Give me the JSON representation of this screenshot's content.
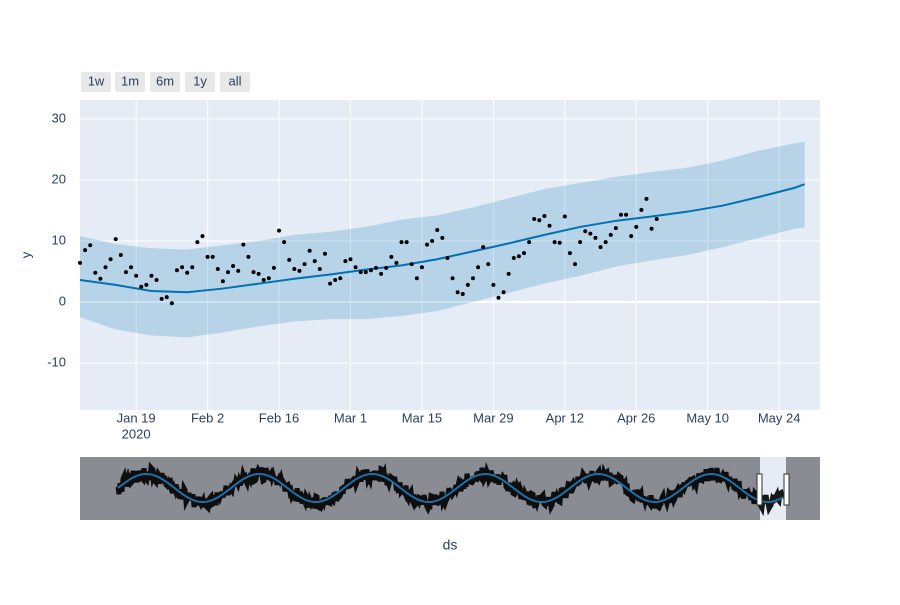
{
  "chart_data": {
    "type": "line",
    "range_buttons": [
      "1w",
      "1m",
      "6m",
      "1y",
      "all"
    ],
    "y_label": "y",
    "x_label": "ds",
    "xlim": [
      "2020-01-08",
      "2020-06-01"
    ],
    "ylim": [
      -17.7,
      33.1
    ],
    "yticks": [
      -10,
      0,
      10,
      20,
      30
    ],
    "xticks": [
      {
        "value": "2020-01-19",
        "label": "Jan 19",
        "sublabel": "2020"
      },
      {
        "value": "2020-02-02",
        "label": "Feb 2"
      },
      {
        "value": "2020-02-16",
        "label": "Feb 16"
      },
      {
        "value": "2020-03-01",
        "label": "Mar 1"
      },
      {
        "value": "2020-03-15",
        "label": "Mar 15"
      },
      {
        "value": "2020-03-29",
        "label": "Mar 29"
      },
      {
        "value": "2020-04-12",
        "label": "Apr 12"
      },
      {
        "value": "2020-04-26",
        "label": "Apr 26"
      },
      {
        "value": "2020-05-10",
        "label": "May 10"
      },
      {
        "value": "2020-05-24",
        "label": "May 24"
      }
    ],
    "grid": true,
    "series": [
      {
        "type": "band",
        "color": "rgba(0,114,178,0.2)",
        "x": [
          "2020-01-08",
          "2020-01-15",
          "2020-01-22",
          "2020-01-29",
          "2020-02-05",
          "2020-02-12",
          "2020-02-19",
          "2020-02-26",
          "2020-03-04",
          "2020-03-11",
          "2020-03-18",
          "2020-03-25",
          "2020-04-01",
          "2020-04-08",
          "2020-04-15",
          "2020-04-22",
          "2020-04-29",
          "2020-05-06",
          "2020-05-13",
          "2020-05-20",
          "2020-05-27",
          "2020-05-29"
        ],
        "upper": [
          10.8,
          9.5,
          8.8,
          8.6,
          9.3,
          10.0,
          11.0,
          11.5,
          12.3,
          13.5,
          14.2,
          15.5,
          17.0,
          18.5,
          19.5,
          20.5,
          21.3,
          22.0,
          23.2,
          24.8,
          26.0,
          26.3
        ],
        "lower": [
          -2.5,
          -4.5,
          -5.5,
          -5.8,
          -5.0,
          -4.0,
          -3.2,
          -2.8,
          -2.8,
          -2.3,
          -1.5,
          0.0,
          1.5,
          3.0,
          4.3,
          5.8,
          6.8,
          7.7,
          9.0,
          10.5,
          12.0,
          12.2
        ]
      },
      {
        "type": "line",
        "color": "#0072B2",
        "x": [
          "2020-01-08",
          "2020-01-15",
          "2020-01-22",
          "2020-01-29",
          "2020-02-05",
          "2020-02-12",
          "2020-02-19",
          "2020-02-26",
          "2020-03-04",
          "2020-03-11",
          "2020-03-18",
          "2020-03-25",
          "2020-04-01",
          "2020-04-08",
          "2020-04-15",
          "2020-04-22",
          "2020-04-29",
          "2020-05-06",
          "2020-05-13",
          "2020-05-20",
          "2020-05-27",
          "2020-05-29"
        ],
        "values": [
          3.6,
          2.8,
          1.8,
          1.6,
          2.2,
          3.0,
          3.8,
          4.5,
          5.3,
          6.0,
          7.0,
          8.3,
          9.6,
          11.0,
          12.3,
          13.3,
          14.0,
          14.8,
          15.8,
          17.2,
          18.7,
          19.3
        ]
      },
      {
        "type": "scatter",
        "color": "#000000",
        "x": [
          "2020-01-08",
          "2020-01-09",
          "2020-01-10",
          "2020-01-11",
          "2020-01-12",
          "2020-01-13",
          "2020-01-14",
          "2020-01-15",
          "2020-01-16",
          "2020-01-17",
          "2020-01-18",
          "2020-01-19",
          "2020-01-20",
          "2020-01-21",
          "2020-01-22",
          "2020-01-23",
          "2020-01-24",
          "2020-01-25",
          "2020-01-26",
          "2020-01-27",
          "2020-01-28",
          "2020-01-29",
          "2020-01-30",
          "2020-01-31",
          "2020-02-01",
          "2020-02-02",
          "2020-02-03",
          "2020-02-04",
          "2020-02-05",
          "2020-02-06",
          "2020-02-07",
          "2020-02-08",
          "2020-02-09",
          "2020-02-10",
          "2020-02-11",
          "2020-02-12",
          "2020-02-13",
          "2020-02-14",
          "2020-02-15",
          "2020-02-16",
          "2020-02-17",
          "2020-02-18",
          "2020-02-19",
          "2020-02-20",
          "2020-02-21",
          "2020-02-22",
          "2020-02-23",
          "2020-02-24",
          "2020-02-25",
          "2020-02-26",
          "2020-02-27",
          "2020-02-28",
          "2020-02-29",
          "2020-03-01",
          "2020-03-02",
          "2020-03-03",
          "2020-03-04",
          "2020-03-05",
          "2020-03-06",
          "2020-03-07",
          "2020-03-08",
          "2020-03-09",
          "2020-03-10",
          "2020-03-11",
          "2020-03-12",
          "2020-03-13",
          "2020-03-14",
          "2020-03-15",
          "2020-03-16",
          "2020-03-17",
          "2020-03-18",
          "2020-03-19",
          "2020-03-20",
          "2020-03-21",
          "2020-03-22",
          "2020-03-23",
          "2020-03-24",
          "2020-03-25",
          "2020-03-26",
          "2020-03-27",
          "2020-03-28",
          "2020-03-29",
          "2020-03-30",
          "2020-03-31",
          "2020-04-01",
          "2020-04-02",
          "2020-04-03",
          "2020-04-04",
          "2020-04-05",
          "2020-04-06",
          "2020-04-07",
          "2020-04-08",
          "2020-04-09",
          "2020-04-10",
          "2020-04-11",
          "2020-04-12",
          "2020-04-13",
          "2020-04-14",
          "2020-04-15",
          "2020-04-16",
          "2020-04-17",
          "2020-04-18",
          "2020-04-19",
          "2020-04-20",
          "2020-04-21",
          "2020-04-22",
          "2020-04-23",
          "2020-04-24",
          "2020-04-25",
          "2020-04-26",
          "2020-04-27",
          "2020-04-28",
          "2020-04-29",
          "2020-04-30"
        ],
        "values": [
          6.4,
          8.5,
          9.3,
          4.8,
          3.8,
          5.7,
          7.0,
          10.3,
          7.7,
          4.9,
          5.7,
          4.3,
          2.5,
          2.8,
          4.3,
          3.6,
          0.5,
          0.8,
          -0.2,
          5.2,
          5.7,
          4.8,
          5.7,
          9.8,
          10.8,
          7.4,
          7.4,
          5.4,
          3.4,
          4.9,
          5.9,
          5.1,
          9.4,
          7.4,
          4.9,
          4.6,
          3.6,
          3.9,
          5.6,
          11.7,
          9.8,
          6.9,
          5.4,
          5.1,
          6.2,
          8.4,
          6.7,
          5.4,
          7.9,
          3.0,
          3.6,
          3.9,
          6.7,
          7.0,
          5.7,
          4.9,
          4.9,
          5.2,
          5.6,
          4.6,
          5.6,
          7.4,
          6.4,
          9.8,
          9.8,
          6.2,
          3.9,
          5.7,
          9.4,
          10.0,
          11.8,
          10.5,
          7.2,
          3.9,
          1.6,
          1.3,
          2.8,
          3.9,
          5.7,
          9.0,
          6.2,
          2.8,
          0.7,
          1.6,
          4.6,
          7.2,
          7.5,
          8.0,
          9.8,
          13.6,
          13.4,
          14.1,
          12.5,
          9.8,
          9.7,
          14.0,
          8.0,
          6.2,
          9.8,
          11.6,
          11.2,
          10.5,
          9.0,
          9.8,
          11.0,
          12.1,
          14.3,
          14.3,
          10.8,
          12.3,
          15.1,
          16.9,
          12.0,
          13.6
        ]
      }
    ]
  }
}
